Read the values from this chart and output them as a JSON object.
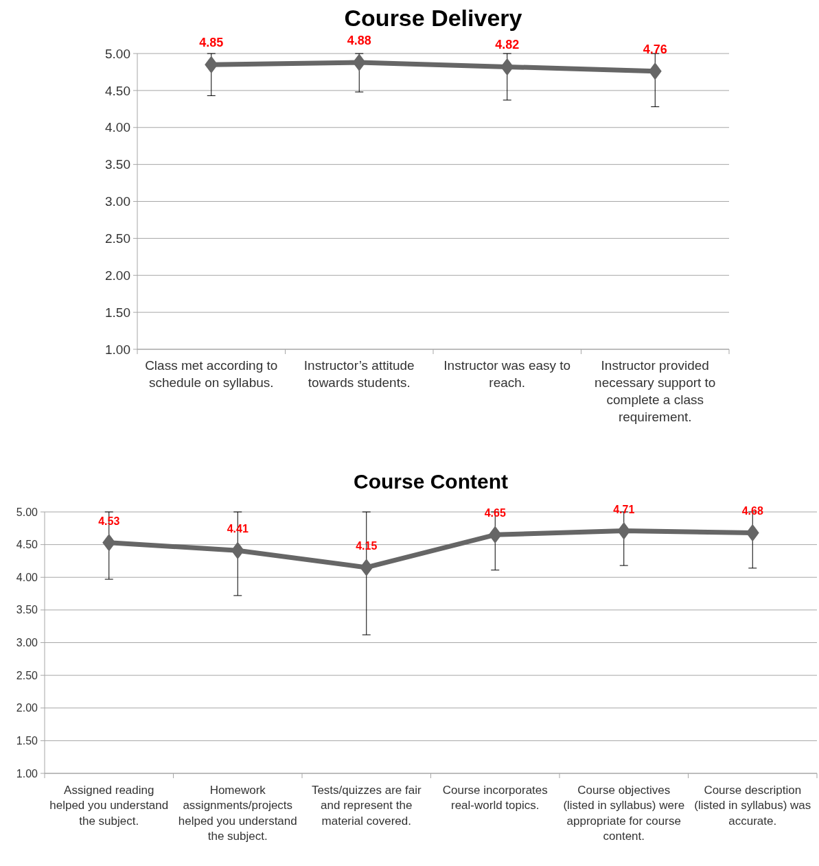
{
  "chart_data": [
    {
      "type": "line",
      "title": "Course Delivery",
      "categories": [
        "Class met according to schedule on syllabus.",
        "Instructor’s attitude towards students.",
        "Instructor was easy to reach.",
        "Instructor provided necessary support to complete a class requirement."
      ],
      "series": [
        {
          "color": "#666666",
          "values": [
            4.85,
            4.88,
            4.82,
            4.76
          ],
          "errors": [
            [
              4.43,
              5.0
            ],
            [
              4.48,
              5.0
            ],
            [
              4.37,
              5.0
            ],
            [
              4.28,
              5.0
            ]
          ]
        }
      ],
      "ylim": [
        1,
        5
      ],
      "yticks": [
        {
          "value": 1,
          "label": "1.00"
        },
        {
          "value": 1.5,
          "label": "1.50"
        },
        {
          "value": 2,
          "label": "2.00"
        },
        {
          "value": 2.5,
          "label": "2.50"
        },
        {
          "value": 3,
          "label": "3.00"
        },
        {
          "value": 3.5,
          "label": "3.50"
        },
        {
          "value": 4,
          "label": "4.00"
        },
        {
          "value": 4.5,
          "label": "4.50"
        },
        {
          "value": 5,
          "label": "5.00"
        }
      ],
      "grid": "y",
      "marker": "diamond",
      "data_labels": true
    },
    {
      "type": "line",
      "title": "Course Content",
      "categories": [
        "Assigned reading helped you understand the subject.",
        "Homework assignments/projects helped you understand the subject.",
        "Tests/quizzes are fair and represent the material covered.",
        "Course incorporates real-world topics.",
        "Course objectives (listed in syllabus) were appropriate for course content.",
        "Course description (listed in syllabus) was accurate."
      ],
      "series": [
        {
          "color": "#666666",
          "values": [
            4.53,
            4.41,
            4.15,
            4.65,
            4.71,
            4.68
          ],
          "errors": [
            [
              3.97,
              5.0
            ],
            [
              3.72,
              5.0
            ],
            [
              3.12,
              5.0
            ],
            [
              4.11,
              5.0
            ],
            [
              4.18,
              5.0
            ],
            [
              4.14,
              5.0
            ]
          ]
        }
      ],
      "ylim": [
        1,
        5
      ],
      "yticks": [
        {
          "value": 1,
          "label": "1.00"
        },
        {
          "value": 1.5,
          "label": "1.50"
        },
        {
          "value": 2,
          "label": "2.00"
        },
        {
          "value": 2.5,
          "label": "2.50"
        },
        {
          "value": 3,
          "label": "3.00"
        },
        {
          "value": 3.5,
          "label": "3.50"
        },
        {
          "value": 4,
          "label": "4.00"
        },
        {
          "value": 4.5,
          "label": "4.50"
        },
        {
          "value": 5,
          "label": "5.00"
        }
      ],
      "grid": "y",
      "marker": "diamond",
      "data_labels": true
    }
  ]
}
